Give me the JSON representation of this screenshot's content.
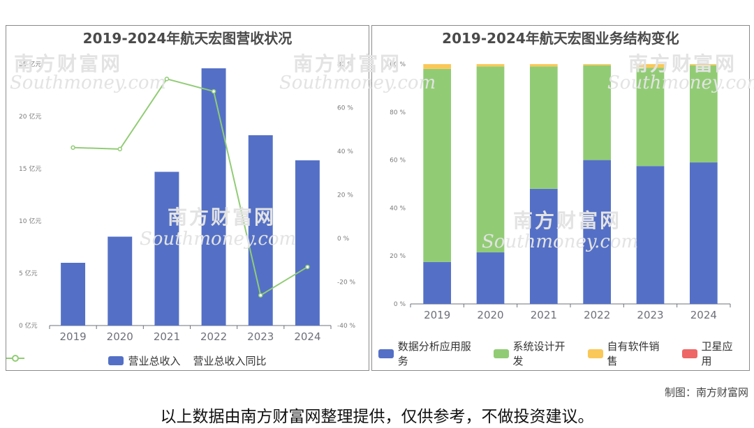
{
  "chart_data": [
    {
      "type": "bar",
      "title": "2019-2024年航天宏图营收状况",
      "categories": [
        "2019",
        "2020",
        "2021",
        "2022",
        "2023",
        "2024"
      ],
      "series": [
        {
          "name": "营业总收入",
          "type": "bar",
          "axis": "left",
          "color": "#5470c6",
          "values": [
            6.0,
            8.5,
            14.7,
            24.6,
            18.2,
            15.8
          ]
        },
        {
          "name": "营业总收入同比",
          "type": "line",
          "axis": "right",
          "color": "#91cc75",
          "values": [
            41.7,
            41.0,
            73.2,
            67.5,
            -26.1,
            -13.1
          ]
        }
      ],
      "y_left": {
        "min": 0,
        "max": 25,
        "step": 5,
        "unit": "亿元",
        "tick_labels": [
          "0 亿元",
          "5 亿元",
          "10 亿元",
          "15 亿元",
          "20 亿元",
          "25 亿元"
        ]
      },
      "y_right": {
        "min": -40,
        "max": 80,
        "step": 20,
        "unit": "%",
        "tick_labels": [
          "-40 %",
          "-20 %",
          "0 %",
          "20 %",
          "40 %",
          "60 %",
          "80 %"
        ]
      },
      "legend": "bottom",
      "grid": false
    },
    {
      "type": "bar",
      "stacked": true,
      "title": "2019-2024年航天宏图业务结构变化",
      "categories": [
        "2019",
        "2020",
        "2021",
        "2022",
        "2023",
        "2024"
      ],
      "series": [
        {
          "name": "数据分析应用服务",
          "color": "#5470c6",
          "values": [
            17.5,
            21.5,
            48.0,
            60.0,
            57.5,
            59.0
          ]
        },
        {
          "name": "系统设计开发",
          "color": "#91cc75",
          "values": [
            80.5,
            77.5,
            51.0,
            39.5,
            41.0,
            40.5
          ]
        },
        {
          "name": "自有软件销售",
          "color": "#fac858",
          "values": [
            2.0,
            1.0,
            1.0,
            0.5,
            1.5,
            0.5
          ]
        },
        {
          "name": "卫星应用",
          "color": "#ee6666",
          "values": [
            0,
            0,
            0,
            0,
            0,
            0
          ]
        }
      ],
      "y": {
        "min": 0,
        "max": 100,
        "step": 20,
        "unit": "%",
        "tick_labels": [
          "0 %",
          "20 %",
          "40 %",
          "60 %",
          "80 %",
          "100 %"
        ]
      },
      "legend": "bottom",
      "grid": false
    }
  ],
  "watermark": {
    "cn": "南方财富网",
    "en": "Southmoney.com"
  },
  "credit": "制图：南方财富网",
  "footer": "以上数据由南方财富网整理提供，仅供参考，不做投资建议。"
}
